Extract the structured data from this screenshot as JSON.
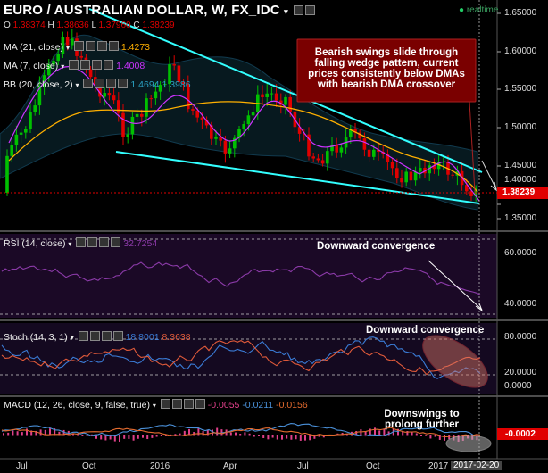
{
  "header": {
    "title": "EURO / AUSTRALIAN DOLLAR, W, FX_IDC",
    "realtime_label": "realtime",
    "ohlc": {
      "o_label": "O",
      "o": "1.38374",
      "h_label": "H",
      "h": "1.38636",
      "l_label": "L",
      "l": "1.37960",
      "c_label": "C",
      "c": "1.38239"
    }
  },
  "indicators": {
    "ma21": {
      "label": "MA (21, close)",
      "value": "1.4273"
    },
    "ma7": {
      "label": "MA (7, close)",
      "value": "1.4008"
    },
    "bb": {
      "label": "BB (20, close, 2)",
      "v1": "1.4694",
      "v2": "1.3986"
    },
    "rsi": {
      "label": "RSI (14, close)",
      "value": "32.7254"
    },
    "stoch": {
      "label": "Stoch (14, 3, 1)",
      "v1": "18.8001",
      "v2": "8.3638"
    },
    "macd": {
      "label": "MACD (12, 26, close, 9, false, true)",
      "v1": "-0.0055",
      "v2": "-0.0211",
      "v3": "-0.0156"
    }
  },
  "annotations": {
    "main": [
      "Bearish swings slide through",
      "falling wedge pattern, current",
      "prices consistently below DMAs",
      "with bearish DMA crossover"
    ],
    "rsi": "Downward convergence",
    "stoch": "Downward convergence",
    "macd": [
      "Downswings to",
      "prolong further"
    ]
  },
  "price_axis": [
    "1.65000",
    "1.60000",
    "1.55000",
    "1.50000",
    "1.45000",
    "1.40000",
    "1.35000"
  ],
  "current_price": "1.38239",
  "rsi_axis": [
    "60.0000",
    "40.0000"
  ],
  "stoch_axis": [
    "80.0000",
    "20.0000",
    "0.0000"
  ],
  "macd_axis": [
    "-0.0002"
  ],
  "time_axis": [
    "Jul",
    "Oct",
    "2016",
    "Apr",
    "Jul",
    "Oct",
    "2017",
    "2017-02-20"
  ],
  "colors": {
    "bull": "#00c000",
    "bear": "#e00000",
    "ma21": "#ffb000",
    "ma7": "#cc33ff",
    "bb": "#1f6b8f",
    "trend": "#33ffff",
    "rsi": "#8b3aa8",
    "stochK": "#3a7bd5",
    "stochD": "#e05a3a",
    "macd": "#4a90d9",
    "signal": "#e36a2e",
    "hist": "#e0408a",
    "annotation_box": "#7a0000"
  }
}
